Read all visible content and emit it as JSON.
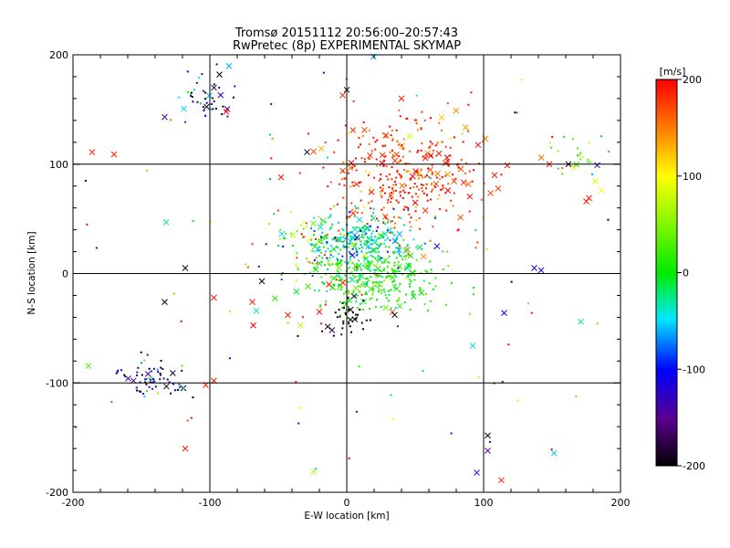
{
  "chart_data": {
    "type": "scatter",
    "title": "Tromsø 20151112 20:56:00–20:57:43",
    "subtitle": "RwPretec (8p) EXPERIMENTAL SKYMAP",
    "xlabel": "E-W location [km]",
    "ylabel": "N-S location [km]",
    "xlim": [
      -200,
      200
    ],
    "ylim": [
      -200,
      200
    ],
    "xticks": [
      "-200",
      "-100",
      "0",
      "100",
      "200"
    ],
    "yticks": [
      "-200",
      "-100",
      "0",
      "100",
      "200"
    ],
    "grid_lines_at": [
      -100,
      0,
      100
    ],
    "colorbar": {
      "label": "[m/s]",
      "range": [
        -200,
        200
      ],
      "ticks": [
        "200",
        "100",
        "0",
        "-100",
        "-200"
      ],
      "colormap": "rainbow (black → purple → blue → cyan → green → yellow → red)"
    },
    "marker_types": [
      "dot",
      "cross"
    ],
    "clusters": [
      {
        "cx": -100,
        "cy": 160,
        "sx": 14,
        "sy": 10,
        "n": 45,
        "v": -130,
        "vs": 90
      },
      {
        "cx": 170,
        "cy": 110,
        "sx": 10,
        "sy": 10,
        "n": 25,
        "v": 40,
        "vs": 50
      },
      {
        "cx": 40,
        "cy": 90,
        "sx": 30,
        "sy": 28,
        "n": 380,
        "v": 180,
        "vs": 30
      },
      {
        "cx": 10,
        "cy": 30,
        "sx": 22,
        "sy": 12,
        "n": 260,
        "v": -30,
        "vs": 40
      },
      {
        "cx": 20,
        "cy": -5,
        "sx": 22,
        "sy": 14,
        "n": 320,
        "v": 10,
        "vs": 25
      },
      {
        "cx": -25,
        "cy": 28,
        "sx": 14,
        "sy": 12,
        "n": 60,
        "v": 70,
        "vs": 80
      },
      {
        "cx": 0,
        "cy": -40,
        "sx": 7,
        "sy": 10,
        "n": 35,
        "v": -195,
        "vs": 10
      },
      {
        "cx": -140,
        "cy": -95,
        "sx": 14,
        "sy": 8,
        "n": 70,
        "v": -150,
        "vs": 90
      },
      {
        "cx": 0,
        "cy": 0,
        "sx": 110,
        "sy": 100,
        "n": 110,
        "v": 60,
        "vs": 160
      }
    ],
    "notable_points": [
      {
        "x": -186,
        "y": 111,
        "v": 190,
        "m": "x"
      },
      {
        "x": -170,
        "y": 109,
        "v": 190,
        "m": "x"
      },
      {
        "x": -133,
        "y": 143,
        "v": -140,
        "m": "x"
      },
      {
        "x": -132,
        "y": 47,
        "v": -30,
        "m": "x"
      },
      {
        "x": -118,
        "y": 5,
        "v": -190,
        "m": "x"
      },
      {
        "x": -133,
        "y": -26,
        "v": -195,
        "m": "x"
      },
      {
        "x": -97,
        "y": -22,
        "v": 190,
        "m": "x"
      },
      {
        "x": -66,
        "y": -34,
        "v": -40,
        "m": "x"
      },
      {
        "x": -69,
        "y": -26,
        "v": 190,
        "m": "x"
      },
      {
        "x": -62,
        "y": -7,
        "v": -195,
        "m": "x"
      },
      {
        "x": -118,
        "y": -160,
        "v": 190,
        "m": "x"
      },
      {
        "x": -97,
        "y": -98,
        "v": 190,
        "m": "x"
      },
      {
        "x": -103,
        "y": -102,
        "v": 190,
        "m": "x"
      },
      {
        "x": 103,
        "y": -148,
        "v": -195,
        "m": "x"
      },
      {
        "x": 103,
        "y": -162,
        "v": -150,
        "m": "x"
      },
      {
        "x": 95,
        "y": -182,
        "v": -100,
        "m": "x"
      },
      {
        "x": 113,
        "y": -189,
        "v": 190,
        "m": "x"
      },
      {
        "x": 115,
        "y": -36,
        "v": -120,
        "m": "x"
      },
      {
        "x": 137,
        "y": 5,
        "v": -120,
        "m": "x"
      },
      {
        "x": 142,
        "y": 3,
        "v": -120,
        "m": "x"
      },
      {
        "x": 171,
        "y": -44,
        "v": -30,
        "m": "x"
      },
      {
        "x": 92,
        "y": -66,
        "v": -40,
        "m": "x"
      },
      {
        "x": 175,
        "y": 66,
        "v": 190,
        "m": "x"
      },
      {
        "x": 177,
        "y": 69,
        "v": 190,
        "m": "x"
      },
      {
        "x": 162,
        "y": 100,
        "v": -195,
        "m": "x"
      },
      {
        "x": 183,
        "y": 99,
        "v": -130,
        "m": "x"
      },
      {
        "x": 0,
        "y": 168,
        "v": -195,
        "m": "x"
      },
      {
        "x": -3,
        "y": 163,
        "v": 190,
        "m": "x"
      },
      {
        "x": 40,
        "y": 160,
        "v": 190,
        "m": "x"
      },
      {
        "x": 72,
        "y": 101,
        "v": 190,
        "m": "x"
      },
      {
        "x": 108,
        "y": 90,
        "v": 190,
        "m": "x"
      },
      {
        "x": 148,
        "y": 100,
        "v": 190,
        "m": "x"
      },
      {
        "x": -48,
        "y": 88,
        "v": 190,
        "m": "x"
      },
      {
        "x": -29,
        "y": 111,
        "v": -195,
        "m": "x"
      },
      {
        "x": -97,
        "y": 170,
        "v": -180,
        "m": "x"
      },
      {
        "x": -88,
        "y": 148,
        "v": 190,
        "m": "x"
      },
      {
        "x": 17,
        "y": 108,
        "v": 190,
        "m": "x"
      },
      {
        "x": 66,
        "y": 25,
        "v": -110,
        "m": "x"
      },
      {
        "x": -13,
        "y": -10,
        "v": 190,
        "m": "x"
      },
      {
        "x": -20,
        "y": -35,
        "v": 190,
        "m": "x"
      },
      {
        "x": -43,
        "y": -38,
        "v": 190,
        "m": "x"
      }
    ]
  }
}
